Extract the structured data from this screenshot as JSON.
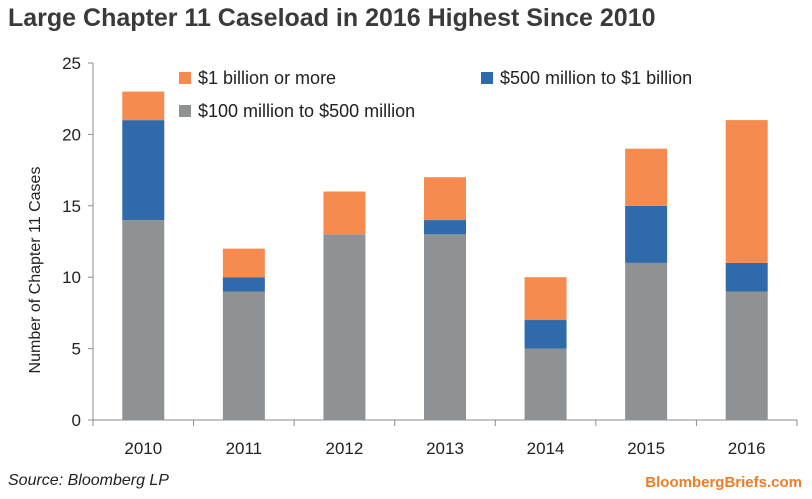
{
  "chart_data": {
    "type": "bar",
    "stacked": true,
    "title": "Large Chapter 11 Caseload in 2016 Highest Since 2010",
    "xlabel": "",
    "ylabel": "Number of Chapter 11 Cases",
    "ylim": [
      0,
      25
    ],
    "yticks": [
      0,
      5,
      10,
      15,
      20,
      25
    ],
    "grid": false,
    "legend_position": "top",
    "categories": [
      "2010",
      "2011",
      "2012",
      "2013",
      "2014",
      "2015",
      "2016"
    ],
    "series": [
      {
        "name": "$100 million to $500 million",
        "color": "#8f9295",
        "values": [
          14,
          9,
          13,
          13,
          5,
          11,
          9
        ]
      },
      {
        "name": "$500 million to $1 billion",
        "color": "#2f6aab",
        "values": [
          7,
          1,
          0,
          1,
          2,
          4,
          2
        ]
      },
      {
        "name": "$1 billion or more",
        "color": "#f68b4f",
        "values": [
          2,
          2,
          3,
          3,
          3,
          4,
          10
        ]
      }
    ]
  },
  "footer": {
    "source": "Source: Bloomberg LP",
    "brand": "BloombergBriefs.com"
  }
}
